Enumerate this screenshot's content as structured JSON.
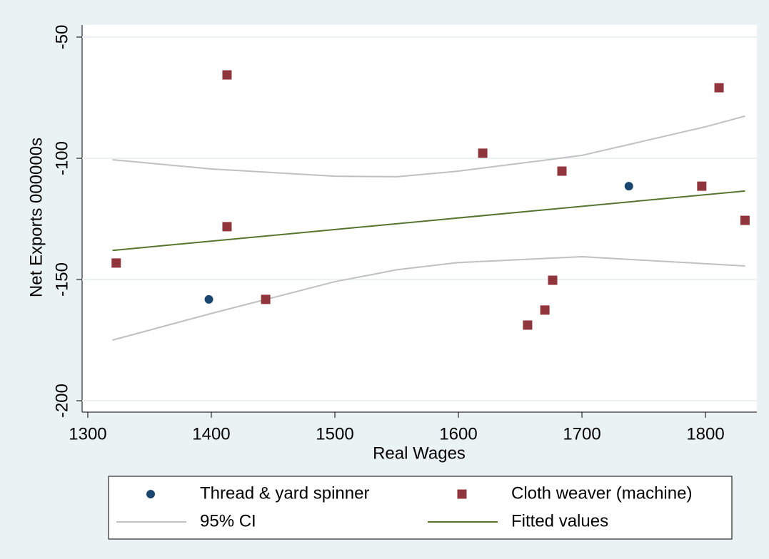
{
  "chart_data": {
    "type": "scatter",
    "x_label": "Real Wages",
    "y_label": "Net Exports 000000s",
    "xlim": [
      1295.4,
      1841.6
    ],
    "ylim": [
      -204.7,
      -45
    ],
    "xticks": [
      1300,
      1400,
      1500,
      1600,
      1700,
      1800
    ],
    "yticks": [
      -50,
      -100,
      -150,
      -200
    ],
    "grid": true,
    "series": [
      {
        "name": "Thread & yard spinner",
        "type": "scatter",
        "marker": "circle",
        "color": "#1a476f",
        "x": [
          1398,
          1738
        ],
        "values": [
          -158.2,
          -111.5
        ]
      },
      {
        "name": "Cloth weaver (machine)",
        "type": "scatter",
        "marker": "square",
        "color": "#90353b",
        "x": [
          1323,
          1412.7,
          1412.7,
          1444,
          1619.7,
          1683.8,
          1676.3,
          1670,
          1656,
          1797,
          1811,
          1832
        ],
        "values": [
          -143.2,
          -65.6,
          -128.2,
          -158.2,
          -97.9,
          -105.3,
          -150.3,
          -162.6,
          -168.8,
          -111.5,
          -70.9,
          -125.6
        ]
      },
      {
        "name": "95% CI",
        "type": "band",
        "color": "#c0c0c0",
        "x": [
          1320,
          1400,
          1500,
          1550,
          1600,
          1700,
          1800,
          1832
        ],
        "upper": [
          -100.6,
          -104.4,
          -107.4,
          -107.6,
          -105.3,
          -98.8,
          -87,
          -82.6
        ],
        "lower": [
          -175,
          -164,
          -150.9,
          -146,
          -143,
          -140.6,
          -143.5,
          -144.4
        ]
      },
      {
        "name": "Fitted values",
        "type": "line",
        "color": "#55752f",
        "x": [
          1320,
          1832
        ],
        "values": [
          -138,
          -113.5
        ]
      }
    ]
  }
}
